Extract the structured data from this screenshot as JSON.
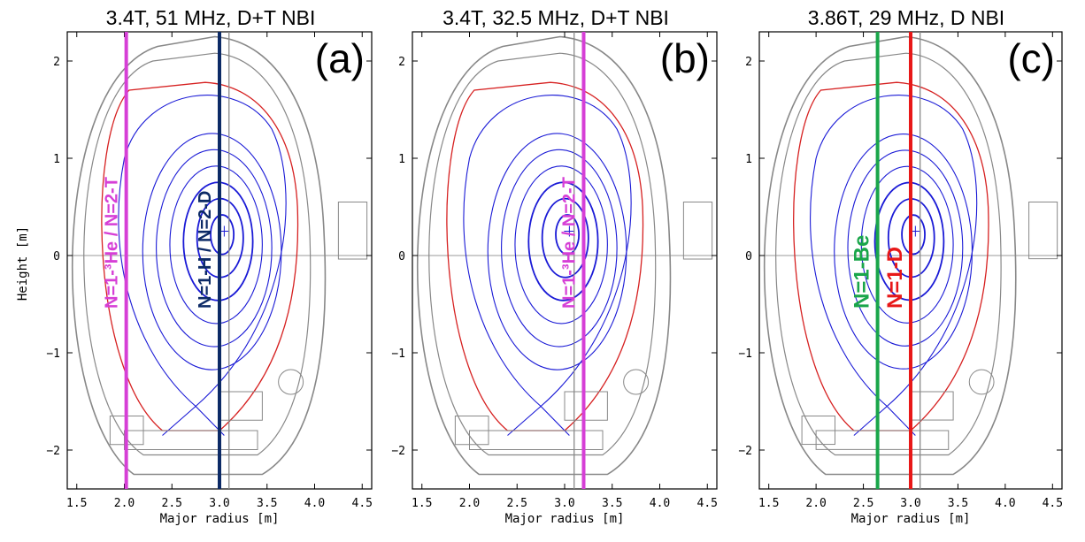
{
  "figure": {
    "ylabel": "Height [m]",
    "xlabel": "Major radius [m]",
    "x_ticks": [
      "1.5",
      "2.0",
      "2.5",
      "3.0",
      "3.5",
      "4.0",
      "4.5"
    ],
    "y_ticks": [
      "2",
      "1",
      "0",
      "−1",
      "−2"
    ],
    "panels": [
      {
        "title": "3.4T, 51 MHz, D+T NBI",
        "label": "(a)",
        "resonances": [
          {
            "R": 2.02,
            "color": "#d63fd6",
            "text": "N=1-³He / N=2-T"
          },
          {
            "R": 3.0,
            "color": "#0c2a66",
            "text": "N=1-H / N=2-D"
          }
        ]
      },
      {
        "title": "3.4T, 32.5 MHz, D+T NBI",
        "label": "(b)",
        "resonances": [
          {
            "R": 3.2,
            "color": "#d63fd6",
            "text": "N=1-³He / N=2-T"
          }
        ]
      },
      {
        "title": "3.86T, 29 MHz, D NBI",
        "label": "(c)",
        "resonances": [
          {
            "R": 2.65,
            "color": "#1aa64a",
            "text": "N=1-Be"
          },
          {
            "R": 3.0,
            "color": "#e81818",
            "text": "N=1-D"
          }
        ]
      }
    ]
  },
  "chart_data": {
    "type": "diagram",
    "xlim": [
      1.4,
      4.6
    ],
    "ylim": [
      -2.4,
      2.3
    ],
    "magnetic_axis": {
      "R": 3.05,
      "Z": 0.25
    },
    "flux_surfaces": 6,
    "colors": {
      "flux": "#1a1ad6",
      "separatrix": "#1a1ad6",
      "boundary": "#d62020",
      "wall": "#888888"
    }
  }
}
